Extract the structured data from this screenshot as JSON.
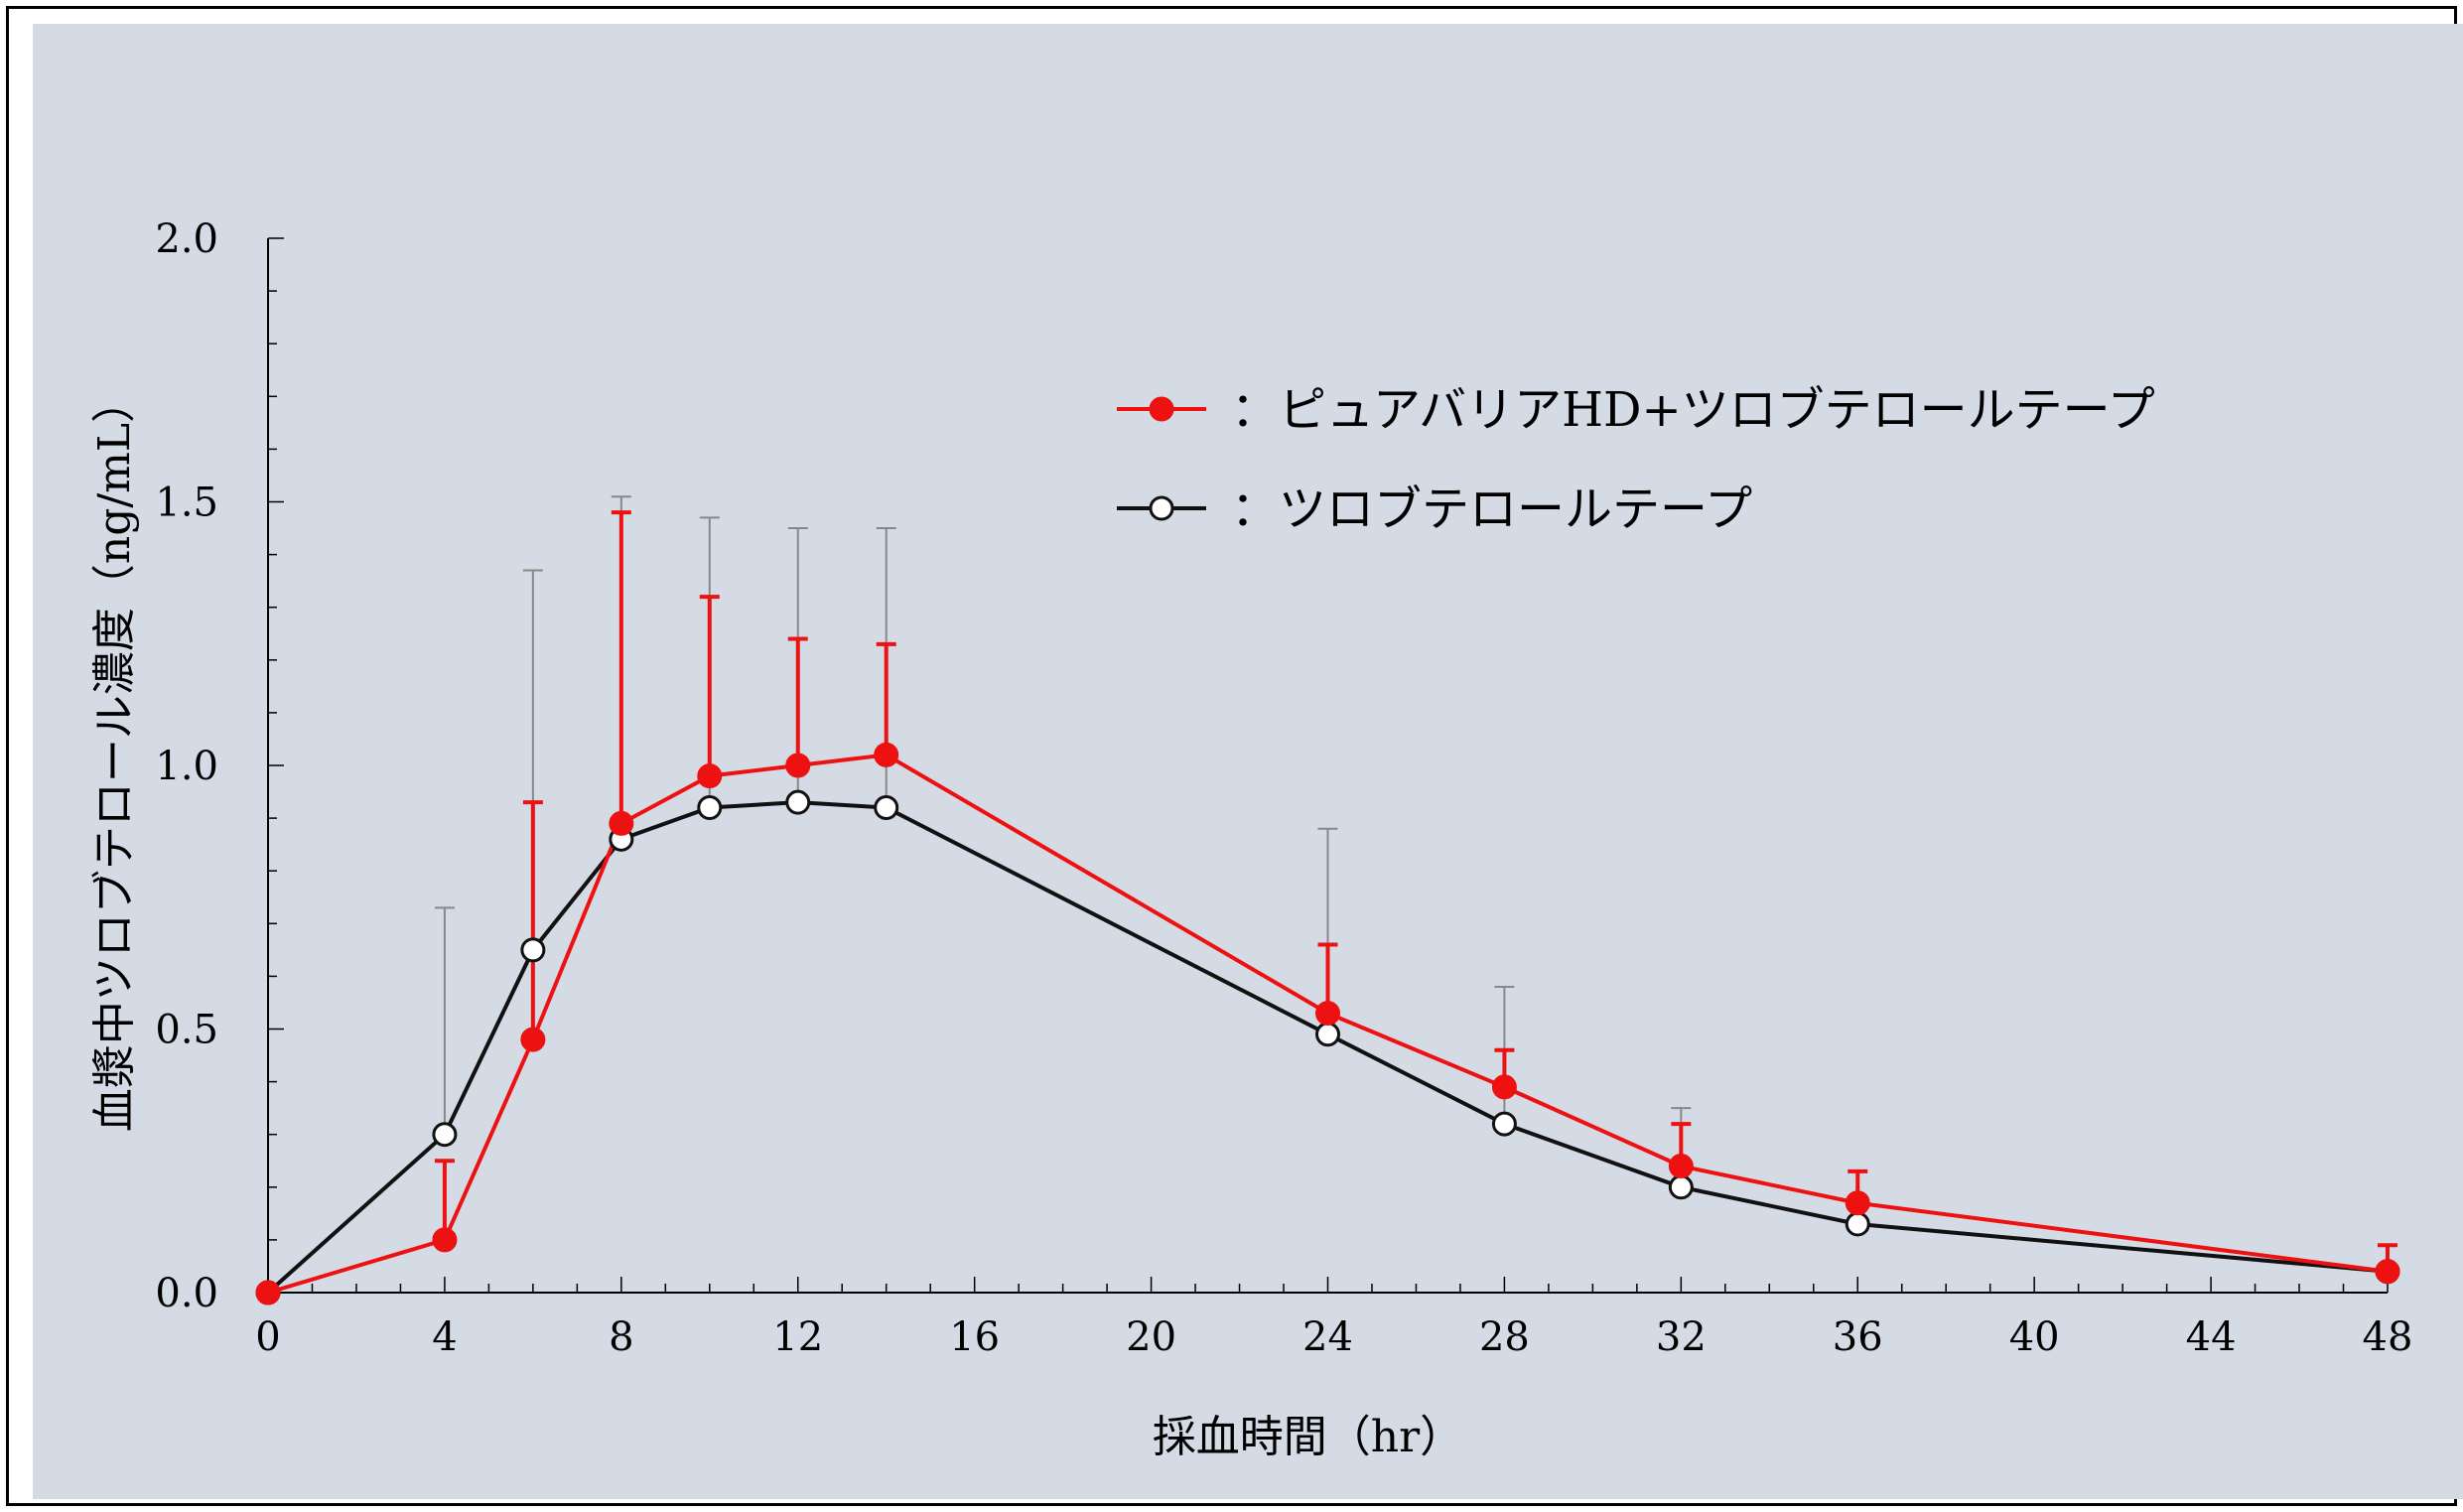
{
  "chart_data": {
    "type": "line",
    "xlabel": "採血時間（hr）",
    "ylabel": "血漿中ツロブテロール濃度（ng/mL）",
    "xlim": [
      0,
      48
    ],
    "ylim": [
      0,
      2.0
    ],
    "x_ticks": [
      "0",
      "4",
      "8",
      "12",
      "16",
      "20",
      "24",
      "28",
      "32",
      "36",
      "40",
      "44",
      "48"
    ],
    "y_ticks": [
      "0.0",
      "0.5",
      "1.0",
      "1.5",
      "2.0"
    ],
    "grid": false,
    "legend_position": "top-right",
    "series": [
      {
        "name": "：ピュアバリアHD+ツロブテロールテープ",
        "color": "#ee1111",
        "marker": "filled-circle",
        "x": [
          0,
          4,
          6,
          8,
          10,
          12,
          14,
          24,
          28,
          32,
          36,
          48
        ],
        "y": [
          0.0,
          0.1,
          0.48,
          0.89,
          0.98,
          1.0,
          1.02,
          0.53,
          0.39,
          0.24,
          0.17,
          0.04
        ],
        "err_upper": [
          0.0,
          0.25,
          0.93,
          1.48,
          1.32,
          1.24,
          1.23,
          0.66,
          0.46,
          0.32,
          0.23,
          0.09
        ]
      },
      {
        "name": "：ツロブテロールテープ",
        "color": "#111111",
        "marker": "open-circle",
        "x": [
          0,
          4,
          6,
          8,
          10,
          12,
          14,
          24,
          28,
          32,
          36,
          48
        ],
        "y": [
          0.0,
          0.3,
          0.65,
          0.86,
          0.92,
          0.93,
          0.92,
          0.49,
          0.32,
          0.2,
          0.13,
          0.04
        ],
        "err_upper": [
          0.0,
          0.73,
          1.37,
          1.51,
          1.47,
          1.45,
          1.45,
          0.88,
          0.58,
          0.35,
          0.0,
          0.0
        ]
      }
    ]
  }
}
